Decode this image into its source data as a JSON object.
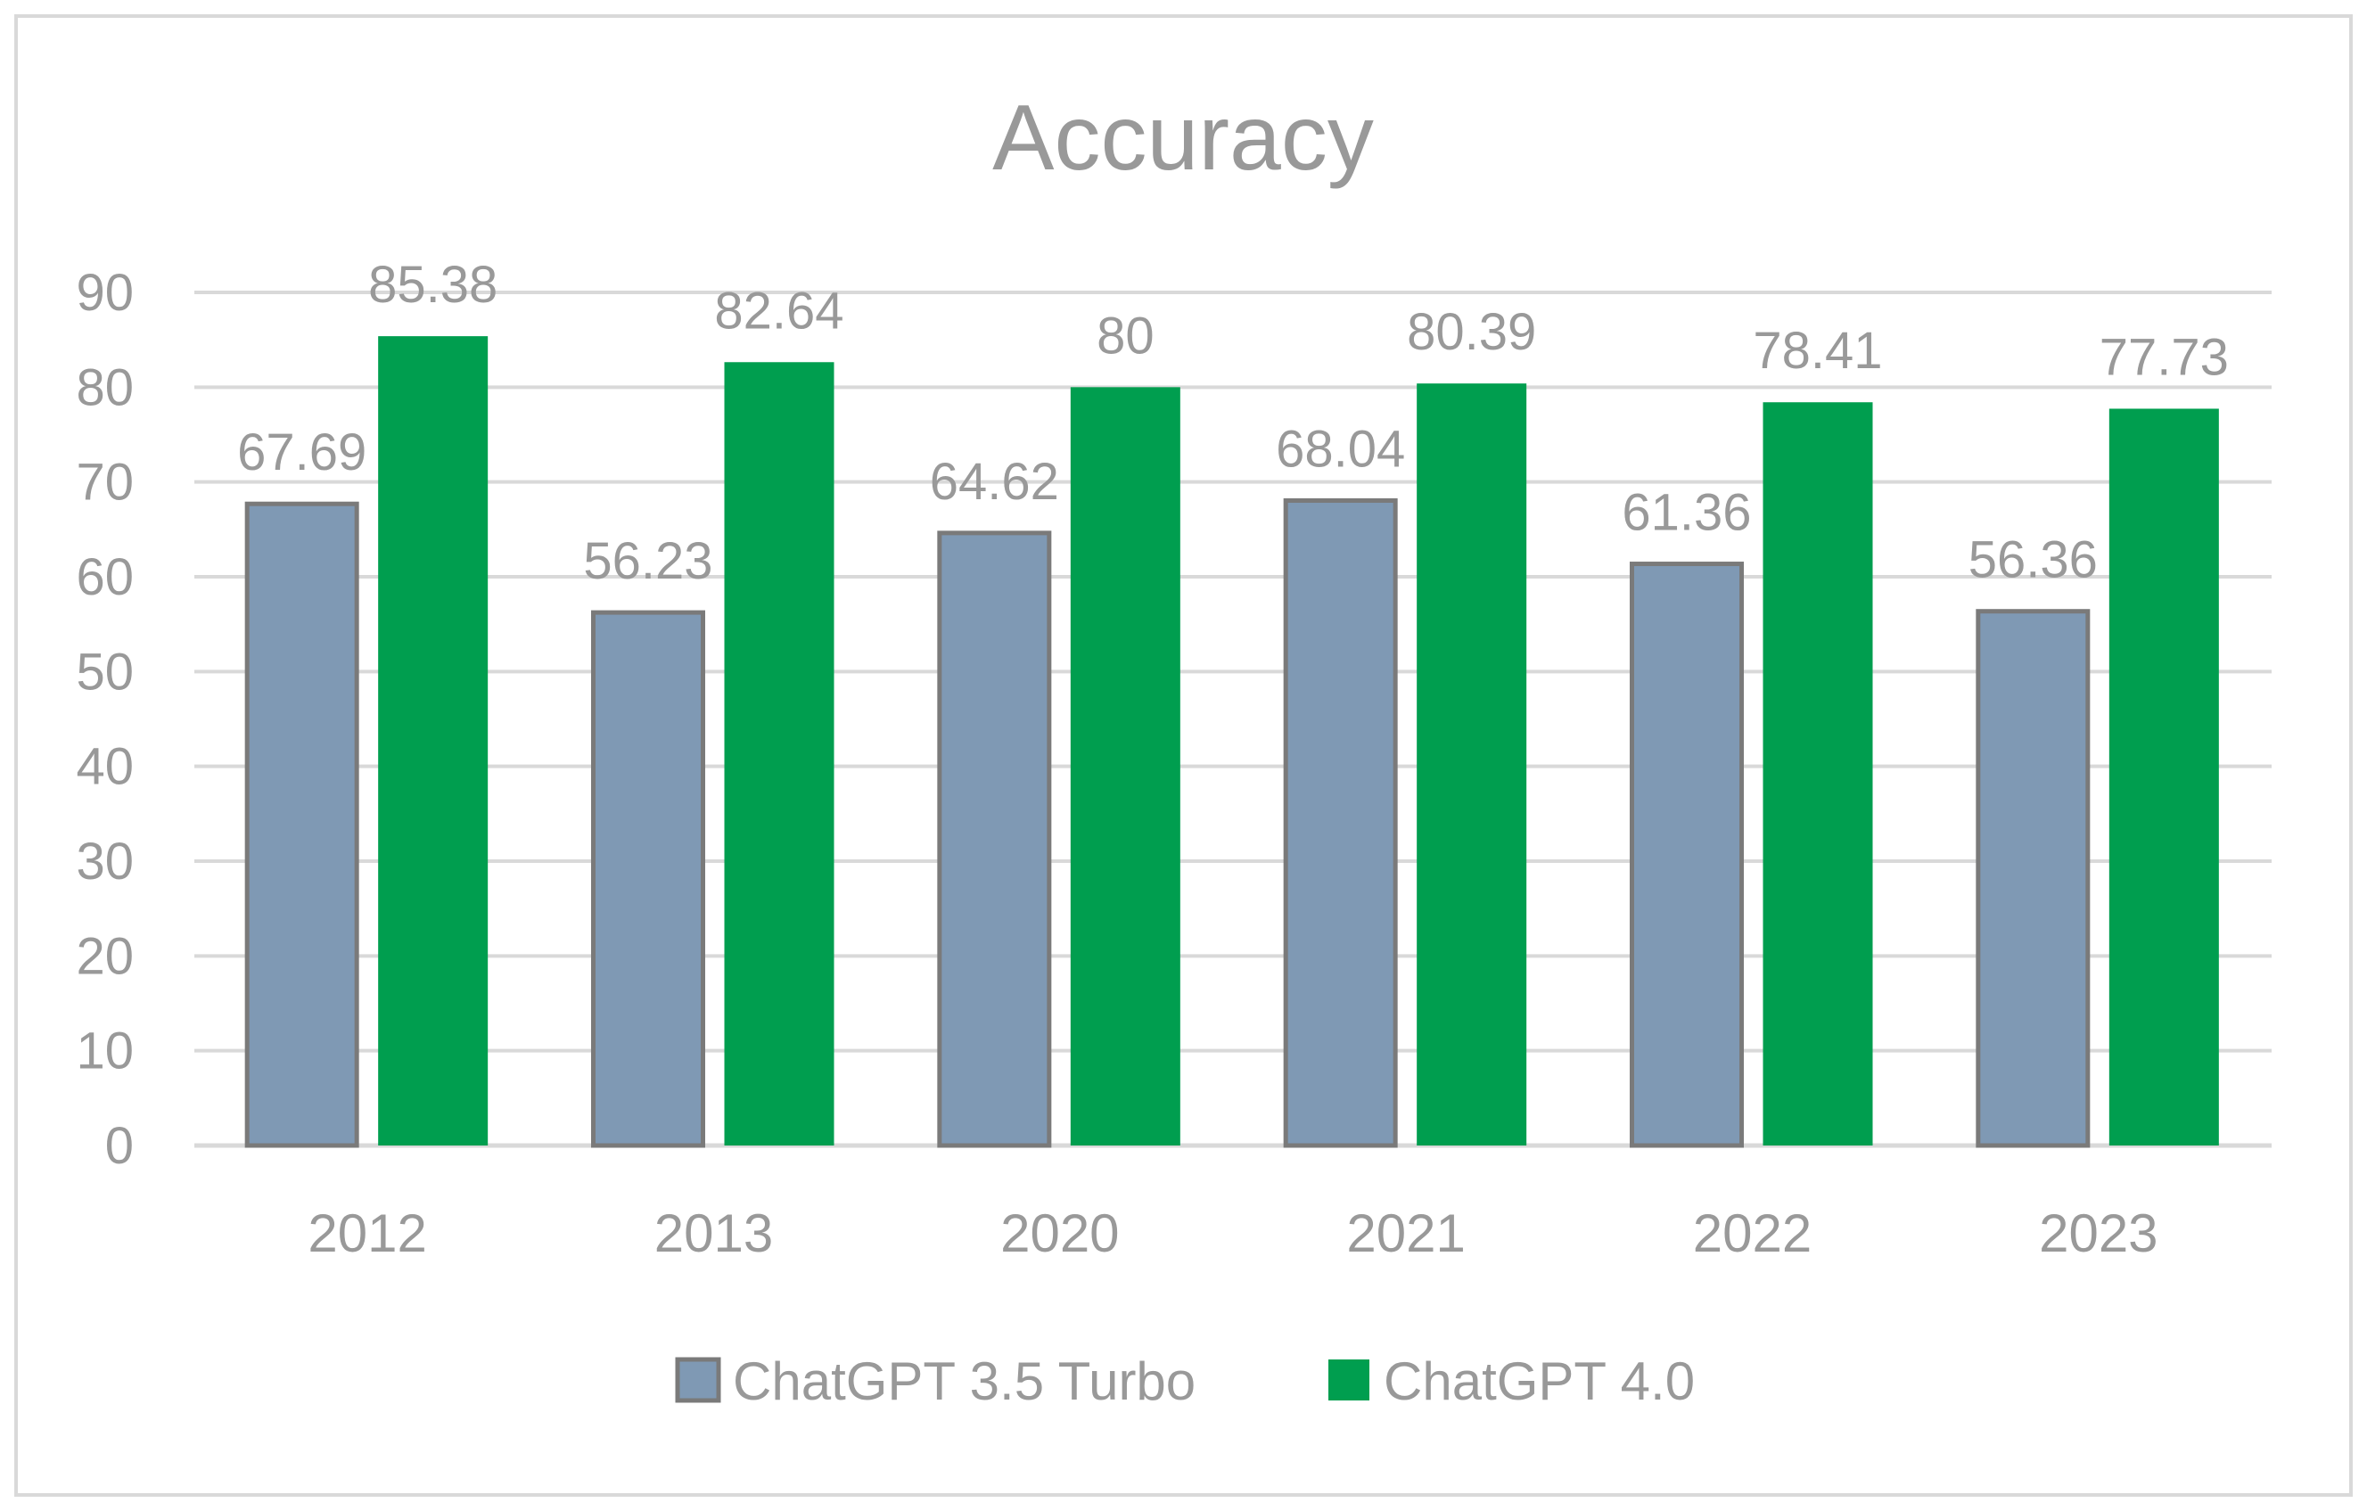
{
  "chart_data": {
    "type": "bar",
    "title": "Accuracy",
    "xlabel": "",
    "ylabel": "",
    "categories": [
      "2012",
      "2013",
      "2020",
      "2021",
      "2022",
      "2023"
    ],
    "series": [
      {
        "name": "ChatGPT 3.5 Turbo",
        "values": [
          67.69,
          56.23,
          64.62,
          68.04,
          61.36,
          56.36
        ],
        "labels": [
          "67.69",
          "56.23",
          "64.62",
          "68.04",
          "61.36",
          "56.36"
        ],
        "color": "#7f99b4",
        "border": "#7a7a7a"
      },
      {
        "name": "ChatGPT 4.0",
        "values": [
          85.38,
          82.64,
          80,
          80.39,
          78.41,
          77.73
        ],
        "labels": [
          "85.38",
          "82.64",
          "80",
          "80.39",
          "78.41",
          "77.73"
        ],
        "color": "#009e4f",
        "border": "#009e4f"
      }
    ],
    "ylim": [
      0,
      90
    ],
    "yticks": [
      "0",
      "10",
      "20",
      "30",
      "40",
      "50",
      "60",
      "70",
      "80",
      "90"
    ],
    "grid": true,
    "legend": "bottom",
    "colors": {
      "text": "#999999",
      "grid": "#d9d9d9",
      "frame": "#d9d9d9"
    }
  }
}
